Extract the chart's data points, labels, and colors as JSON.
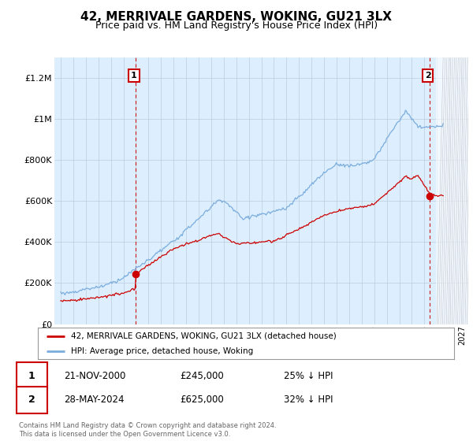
{
  "title": "42, MERRIVALE GARDENS, WOKING, GU21 3LX",
  "subtitle": "Price paid vs. HM Land Registry's House Price Index (HPI)",
  "title_fontsize": 11,
  "subtitle_fontsize": 9,
  "ylabel_ticks": [
    "£0",
    "£200K",
    "£400K",
    "£600K",
    "£800K",
    "£1M",
    "£1.2M"
  ],
  "ytick_values": [
    0,
    200000,
    400000,
    600000,
    800000,
    1000000,
    1200000
  ],
  "ylim": [
    0,
    1300000
  ],
  "xlim_start": 1994.5,
  "xlim_end": 2027.5,
  "price_paid_color": "#cc0000",
  "hpi_color": "#7aaddd",
  "annotation_box_color": "#cc0000",
  "purchase1_x": 2001.0,
  "purchase1_y": 245000,
  "purchase1_label": "1",
  "purchase2_x": 2024.42,
  "purchase2_y": 625000,
  "purchase2_label": "2",
  "legend_line1": "42, MERRIVALE GARDENS, WOKING, GU21 3LX (detached house)",
  "legend_line2": "HPI: Average price, detached house, Woking",
  "table_row1": [
    "1",
    "21-NOV-2000",
    "£245,000",
    "25% ↓ HPI"
  ],
  "table_row2": [
    "2",
    "28-MAY-2024",
    "£625,000",
    "32% ↓ HPI"
  ],
  "footer": "Contains HM Land Registry data © Crown copyright and database right 2024.\nThis data is licensed under the Open Government Licence v3.0.",
  "grid_color": "#bbccdd",
  "background_color": "#ffffff",
  "plot_bg_color": "#ddeeff"
}
